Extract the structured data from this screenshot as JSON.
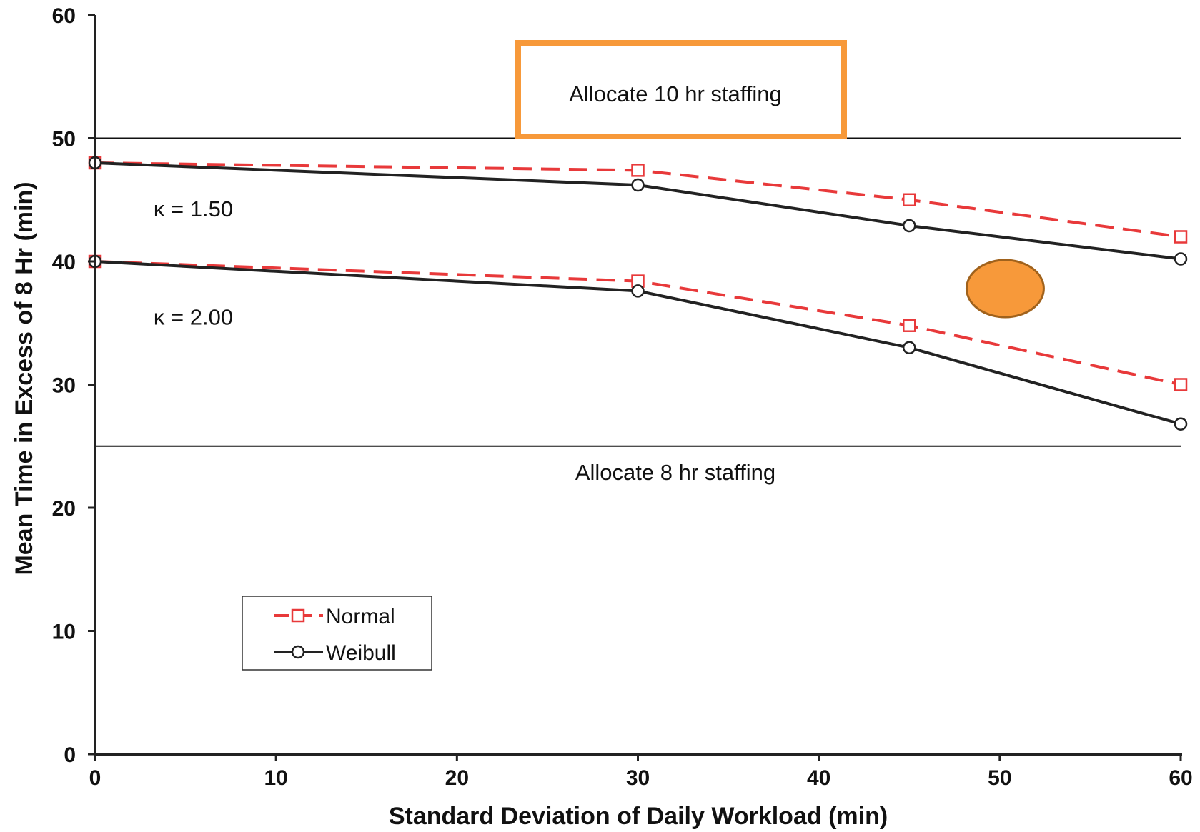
{
  "chart_data": {
    "type": "line",
    "xlabel": "Standard Deviation of Daily Workload (min)",
    "ylabel": "Mean Time in Excess of 8 Hr (min)",
    "xlim": [
      0,
      60
    ],
    "ylim": [
      0,
      60
    ],
    "x_ticks": [
      "0",
      "10",
      "20",
      "30",
      "40",
      "50",
      "60"
    ],
    "y_ticks": [
      "0",
      "10",
      "20",
      "30",
      "40",
      "50",
      "60"
    ],
    "grid": false,
    "legend_position": "lower-left",
    "legend": [
      {
        "label": "Normal",
        "color": "#e8393a",
        "style": "dashed",
        "marker": "square"
      },
      {
        "label": "Weibull",
        "color": "#222222",
        "style": "solid",
        "marker": "circle"
      }
    ],
    "series": [
      {
        "name": "Normal",
        "group": "κ = 1.50",
        "color": "#e8393a",
        "x": [
          0,
          30,
          45,
          60
        ],
        "y": [
          48,
          47.4,
          45,
          42
        ]
      },
      {
        "name": "Weibull",
        "group": "κ = 1.50",
        "color": "#222222",
        "x": [
          0,
          30,
          45,
          60
        ],
        "y": [
          48,
          46.2,
          42.9,
          40.2
        ]
      },
      {
        "name": "Normal",
        "group": "κ = 2.00",
        "color": "#e8393a",
        "x": [
          0,
          30,
          45,
          60
        ],
        "y": [
          40,
          38.4,
          34.8,
          30
        ]
      },
      {
        "name": "Weibull",
        "group": "κ = 2.00",
        "color": "#222222",
        "x": [
          0,
          30,
          45,
          60
        ],
        "y": [
          40,
          37.6,
          33,
          26.8
        ]
      }
    ],
    "reference_lines": [
      {
        "y": 50,
        "label": "Allocate 10 hr staffing",
        "label_boxed": true,
        "box_color": "#f7993a"
      },
      {
        "y": 25,
        "label": "Allocate 8 hr staffing",
        "label_boxed": false
      }
    ],
    "annotations": [
      {
        "text": "κ = 1.50",
        "x": 6,
        "y": 44.3
      },
      {
        "text": "κ = 2.00",
        "x": 6,
        "y": 35.5
      }
    ],
    "highlight_marker": {
      "x": 50.3,
      "y": 37.8,
      "color": "#f7993a",
      "border": "#a0621c"
    }
  }
}
